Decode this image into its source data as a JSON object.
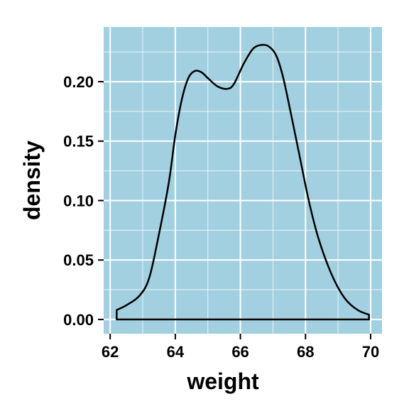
{
  "chart_data": {
    "type": "area",
    "xlabel": "weight",
    "ylabel": "density",
    "xlim": [
      61.8,
      70.35
    ],
    "ylim": [
      -0.012,
      0.246
    ],
    "x_ticks": [
      62,
      64,
      66,
      68,
      70
    ],
    "x_tick_labels": [
      "62",
      "64",
      "66",
      "68",
      "70"
    ],
    "y_ticks": [
      0,
      0.05,
      0.1,
      0.15,
      0.2
    ],
    "y_tick_labels": [
      "0.00",
      "0.05",
      "0.10",
      "0.15",
      "0.20"
    ],
    "grid": true,
    "colors": {
      "panel": "#a3d0e0",
      "grid": "#ffffff",
      "line": "#000000"
    },
    "series": [
      {
        "x": [
          62.2,
          62.5,
          62.9,
          63.2,
          63.5,
          63.8,
          64.0,
          64.2,
          64.4,
          64.6,
          64.8,
          65.0,
          65.3,
          65.6,
          65.8,
          66.1,
          66.4,
          66.7,
          66.9,
          67.1,
          67.3,
          67.5,
          67.8,
          68.1,
          68.4,
          68.8,
          69.2,
          69.6,
          69.95
        ],
        "y": [
          0.008,
          0.012,
          0.02,
          0.035,
          0.072,
          0.115,
          0.155,
          0.185,
          0.203,
          0.209,
          0.208,
          0.203,
          0.196,
          0.194,
          0.198,
          0.215,
          0.228,
          0.231,
          0.229,
          0.222,
          0.205,
          0.18,
          0.14,
          0.1,
          0.068,
          0.038,
          0.018,
          0.008,
          0.004
        ]
      }
    ]
  }
}
